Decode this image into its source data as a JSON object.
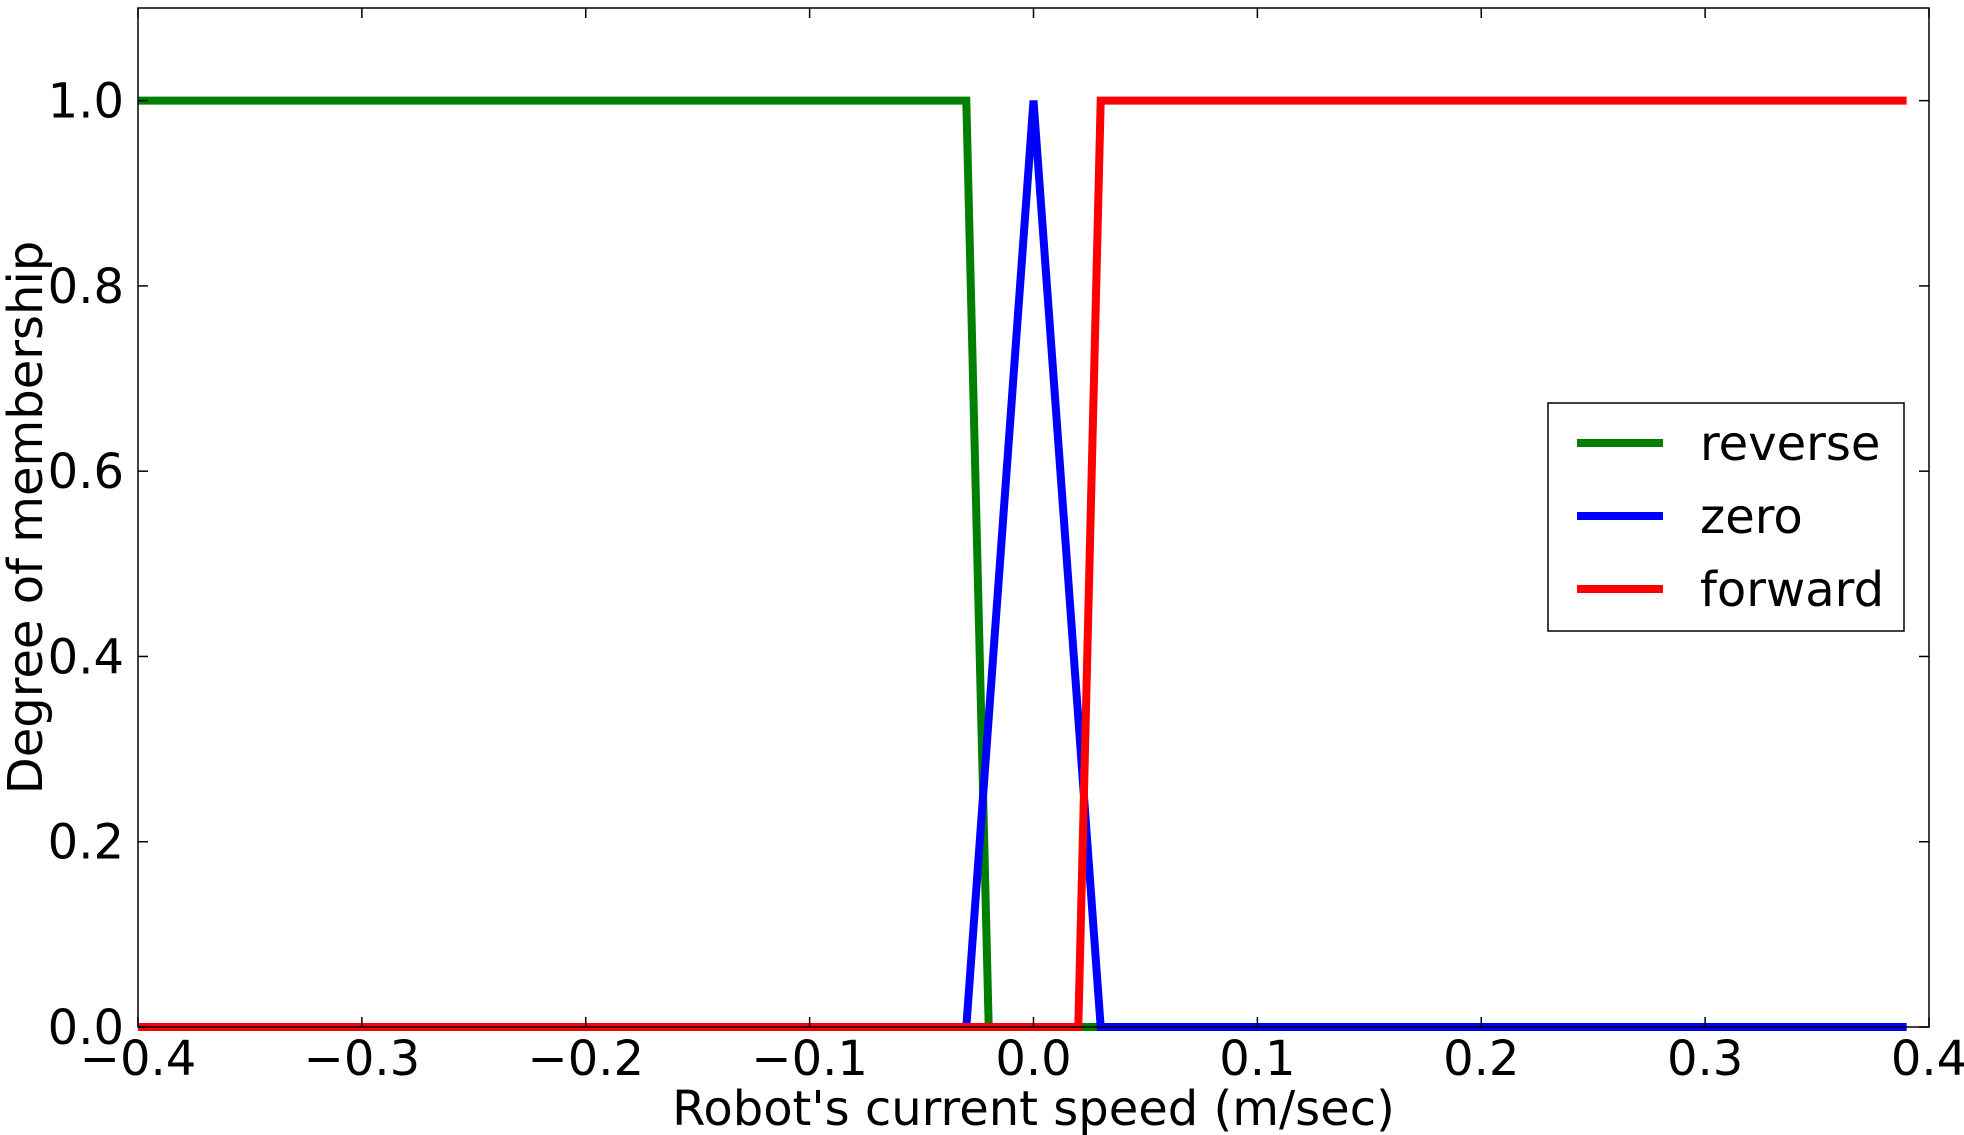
{
  "chart_data": {
    "type": "line",
    "title": "",
    "xlabel": "Robot's current speed (m/sec)",
    "ylabel": "Degree of membership",
    "xlim": [
      -0.4,
      0.4
    ],
    "ylim": [
      0.0,
      1.1
    ],
    "xticks": [
      -0.4,
      -0.3,
      -0.2,
      -0.1,
      0.0,
      0.1,
      0.2,
      0.3,
      0.4
    ],
    "xtick_labels": [
      "−0.4",
      "−0.3",
      "−0.2",
      "−0.1",
      "0.0",
      "0.1",
      "0.2",
      "0.3",
      "0.4"
    ],
    "yticks": [
      0.0,
      0.2,
      0.4,
      0.6,
      0.8,
      1.0
    ],
    "ytick_labels": [
      "0.0",
      "0.2",
      "0.4",
      "0.6",
      "0.8",
      "1.0"
    ],
    "grid": false,
    "legend_position": "center-right",
    "series": [
      {
        "name": "reverse",
        "color": "#008000",
        "x": [
          -0.4,
          -0.03,
          -0.02,
          0.39
        ],
        "y": [
          1.0,
          1.0,
          0.0,
          0.0
        ]
      },
      {
        "name": "zero",
        "color": "#0000ff",
        "x": [
          -0.4,
          -0.03,
          0.0,
          0.03,
          0.39
        ],
        "y": [
          0.0,
          0.0,
          1.0,
          0.0,
          0.0
        ]
      },
      {
        "name": "forward",
        "color": "#ff0000",
        "x": [
          -0.4,
          0.02,
          0.03,
          0.39
        ],
        "y": [
          0.0,
          0.0,
          1.0,
          1.0
        ]
      }
    ]
  }
}
